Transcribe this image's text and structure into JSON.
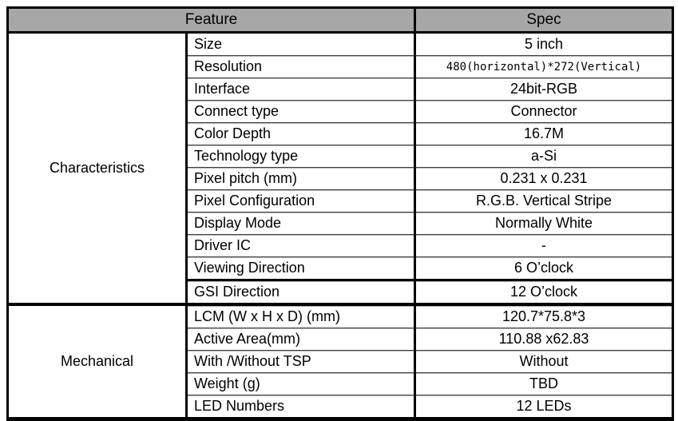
{
  "table": {
    "header": {
      "feature": "Feature",
      "spec": "Spec"
    },
    "sections": [
      {
        "category": "Characteristics",
        "rows": [
          {
            "feature": "Size",
            "spec": "5 inch"
          },
          {
            "feature": "Resolution",
            "spec": "480(horizontal)*272(Vertical)"
          },
          {
            "feature": "Interface",
            "spec": "24bit-RGB"
          },
          {
            "feature": "Connect type",
            "spec": "Connector"
          },
          {
            "feature": "Color Depth",
            "spec": "16.7M"
          },
          {
            "feature": "Technology type",
            "spec": "a-Si"
          },
          {
            "feature": "Pixel pitch (mm)",
            "spec": "0.231 x 0.231"
          },
          {
            "feature": "Pixel Configuration",
            "spec": "R.G.B. Vertical Stripe"
          },
          {
            "feature": "Display Mode",
            "spec": "Normally White"
          },
          {
            "feature": "Driver IC",
            "spec": "-"
          },
          {
            "feature": "Viewing Direction",
            "spec": "6 O’clock"
          },
          {
            "feature": "GSI Direction",
            "spec": "12 O’clock"
          }
        ]
      },
      {
        "category": "Mechanical",
        "rows": [
          {
            "feature": "LCM (W x H x D) (mm)",
            "spec": "120.7*75.8*3"
          },
          {
            "feature": "Active Area(mm)",
            "spec": "110.88 x62.83"
          },
          {
            "feature": "With /Without TSP",
            "spec": "Without"
          },
          {
            "feature": "Weight (g)",
            "spec": "TBD"
          },
          {
            "feature": "LED Numbers",
            "spec": "12 LEDs"
          }
        ]
      }
    ],
    "colors": {
      "header_bg": "#a7a7a7",
      "outer_border": "#000000",
      "row_separator": "#404040",
      "row_separator_highlight": "#b3b3b3"
    }
  }
}
